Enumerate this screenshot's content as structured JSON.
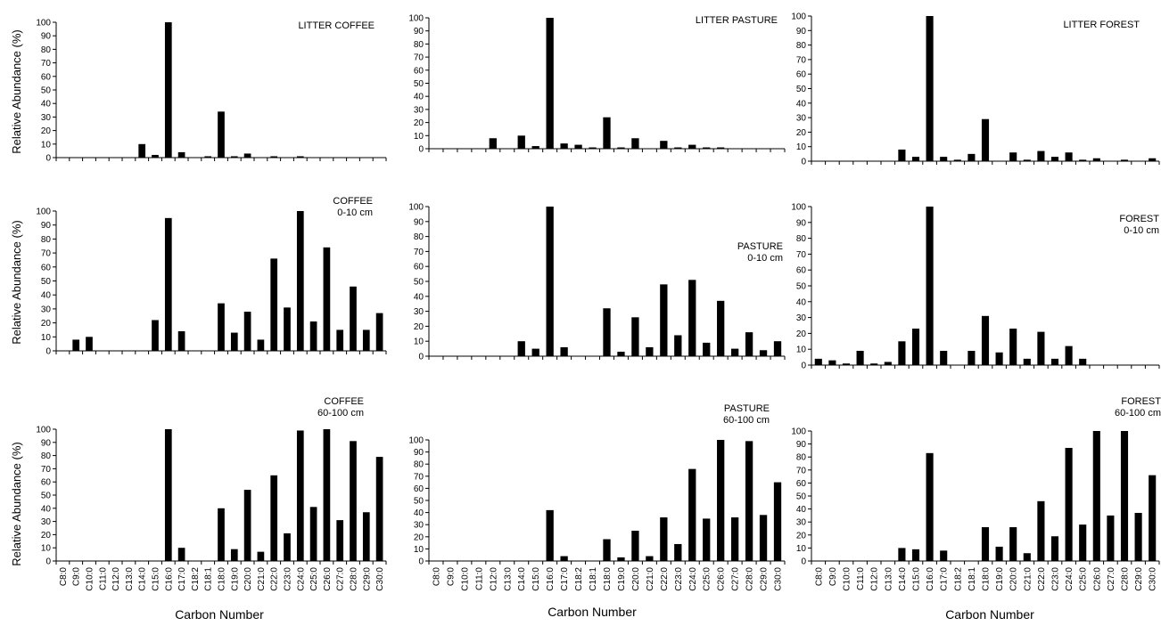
{
  "page": {
    "y_axis_label": "Relative Abundance (%)",
    "x_axis_label": "Carbon Number"
  },
  "chart_data": [
    {
      "type": "bar",
      "title_lines": [
        "LITTER COFFEE"
      ],
      "ylim": [
        0,
        100
      ],
      "yticks": [
        0,
        10,
        20,
        30,
        40,
        50,
        60,
        70,
        80,
        90,
        100
      ],
      "categories": [
        "C8:0",
        "C9:0",
        "C10:0",
        "C11:0",
        "C12:0",
        "C13:0",
        "C14:0",
        "C15:0",
        "C16:0",
        "C17:0",
        "C18:2",
        "C18:1",
        "C18:0",
        "C19:0",
        "C20:0",
        "C21:0",
        "C22:0",
        "C23:0",
        "C24:0",
        "C25:0",
        "C26:0",
        "C27:0",
        "C28:0",
        "C29:0",
        "C30:0"
      ],
      "values": [
        0,
        0,
        0,
        0,
        0,
        0,
        10,
        2,
        100,
        4,
        0,
        1,
        34,
        1,
        3,
        0,
        1,
        0,
        1,
        0,
        0,
        0,
        0,
        0,
        0
      ]
    },
    {
      "type": "bar",
      "title_lines": [
        "LITTER PASTURE"
      ],
      "ylim": [
        0,
        100
      ],
      "yticks": [
        0,
        10,
        20,
        30,
        40,
        50,
        60,
        70,
        80,
        90,
        100
      ],
      "categories": [
        "C8:0",
        "C9:0",
        "C10:0",
        "C11:0",
        "C12:0",
        "C13:0",
        "C14:0",
        "C15:0",
        "C16:0",
        "C17:0",
        "C18:2",
        "C18:1",
        "C18:0",
        "C19:0",
        "C20:0",
        "C21:0",
        "C22:0",
        "C23:0",
        "C24:0",
        "C25:0",
        "C26:0",
        "C27:0",
        "C28:0",
        "C29:0",
        "C30:0"
      ],
      "values": [
        0,
        0,
        0,
        0,
        8,
        0,
        10,
        2,
        100,
        4,
        3,
        1,
        24,
        1,
        8,
        0,
        6,
        1,
        3,
        1,
        1,
        0,
        0,
        0,
        0
      ]
    },
    {
      "type": "bar",
      "title_lines": [
        "LITTER FOREST"
      ],
      "ylim": [
        0,
        100
      ],
      "yticks": [
        0,
        10,
        20,
        30,
        40,
        50,
        60,
        70,
        80,
        90,
        100
      ],
      "categories": [
        "C8:0",
        "C9:0",
        "C10:0",
        "C11:0",
        "C12:0",
        "C13:0",
        "C14:0",
        "C15:0",
        "C16:0",
        "C17:0",
        "C18:2",
        "C18:1",
        "C18:0",
        "C19:0",
        "C20:0",
        "C21:0",
        "C22:0",
        "C23:0",
        "C24:0",
        "C25:0",
        "C26:0",
        "C27:0",
        "C28:0",
        "C29:0",
        "C30:0"
      ],
      "values": [
        0,
        0,
        0,
        0,
        0,
        0,
        8,
        3,
        100,
        3,
        1,
        5,
        29,
        0,
        6,
        1,
        7,
        3,
        6,
        1,
        2,
        0,
        1,
        0,
        2
      ]
    },
    {
      "type": "bar",
      "title_lines": [
        "COFFEE",
        "0-10 cm"
      ],
      "ylim": [
        0,
        100
      ],
      "yticks": [
        0,
        10,
        20,
        30,
        40,
        50,
        60,
        70,
        80,
        90,
        100
      ],
      "categories": [
        "C8:0",
        "C9:0",
        "C10:0",
        "C11:0",
        "C12:0",
        "C13:0",
        "C14:0",
        "C15:0",
        "C16:0",
        "C17:0",
        "C18:2",
        "C18:1",
        "C18:0",
        "C19:0",
        "C20:0",
        "C21:0",
        "C22:0",
        "C23:0",
        "C24:0",
        "C25:0",
        "C26:0",
        "C27:0",
        "C28:0",
        "C29:0",
        "C30:0"
      ],
      "values": [
        0,
        8,
        10,
        0,
        0,
        0,
        0,
        22,
        95,
        14,
        0,
        0,
        34,
        13,
        28,
        8,
        66,
        31,
        100,
        21,
        74,
        15,
        46,
        15,
        27
      ]
    },
    {
      "type": "bar",
      "title_lines": [
        "PASTURE",
        "0-10 cm"
      ],
      "ylim": [
        0,
        100
      ],
      "yticks": [
        0,
        10,
        20,
        30,
        40,
        50,
        60,
        70,
        80,
        90,
        100
      ],
      "categories": [
        "C8:0",
        "C9:0",
        "C10:0",
        "C11:0",
        "C12:0",
        "C13:0",
        "C14:0",
        "C15:0",
        "C16:0",
        "C17:0",
        "C18:2",
        "C18:1",
        "C18:0",
        "C19:0",
        "C20:0",
        "C21:0",
        "C22:0",
        "C23:0",
        "C24:0",
        "C25:0",
        "C26:0",
        "C27:0",
        "C28:0",
        "C29:0",
        "C30:0"
      ],
      "values": [
        0,
        0,
        0,
        0,
        0,
        0,
        10,
        5,
        100,
        6,
        0,
        0,
        32,
        3,
        26,
        6,
        48,
        14,
        51,
        9,
        37,
        5,
        16,
        4,
        10
      ]
    },
    {
      "type": "bar",
      "title_lines": [
        "FOREST",
        "0-10 cm"
      ],
      "ylim": [
        0,
        100
      ],
      "yticks": [
        0,
        10,
        20,
        30,
        40,
        50,
        60,
        70,
        80,
        90,
        100
      ],
      "categories": [
        "C8:0",
        "C9:0",
        "C10:0",
        "C11:0",
        "C12:0",
        "C13:0",
        "C14:0",
        "C15:0",
        "C16:0",
        "C17:0",
        "C18:2",
        "C18:1",
        "C18:0",
        "C19:0",
        "C20:0",
        "C21:0",
        "C22:0",
        "C23:0",
        "C24:0",
        "C25:0",
        "C26:0",
        "C27:0",
        "C28:0",
        "C29:0",
        "C30:0"
      ],
      "values": [
        4,
        3,
        1,
        9,
        1,
        2,
        15,
        23,
        100,
        9,
        0,
        9,
        31,
        8,
        23,
        4,
        21,
        4,
        12,
        4,
        0,
        0,
        0,
        0,
        0
      ]
    },
    {
      "type": "bar",
      "title_lines": [
        "COFFEE",
        "60-100 cm"
      ],
      "ylim": [
        0,
        100
      ],
      "yticks": [
        0,
        10,
        20,
        30,
        40,
        50,
        60,
        70,
        80,
        90,
        100
      ],
      "categories": [
        "C8:0",
        "C9:0",
        "C10:0",
        "C11:0",
        "C12:0",
        "C13:0",
        "C14:0",
        "C15:0",
        "C16:0",
        "C17:0",
        "C18:2",
        "C18:1",
        "C18:0",
        "C19:0",
        "C20:0",
        "C21:0",
        "C22:0",
        "C23:0",
        "C24:0",
        "C25:0",
        "C26:0",
        "C27:0",
        "C28:0",
        "C29:0",
        "C30:0"
      ],
      "values": [
        0,
        0,
        0,
        0,
        0,
        0,
        0,
        0,
        100,
        10,
        0,
        0,
        40,
        9,
        54,
        7,
        65,
        21,
        99,
        41,
        100,
        31,
        91,
        37,
        79
      ]
    },
    {
      "type": "bar",
      "title_lines": [
        "PASTURE",
        "60-100 cm"
      ],
      "ylim": [
        0,
        100
      ],
      "yticks": [
        0,
        10,
        20,
        30,
        40,
        50,
        60,
        70,
        80,
        90,
        100
      ],
      "categories": [
        "C8:0",
        "C9:0",
        "C10:0",
        "C11:0",
        "C12:0",
        "C13:0",
        "C14:0",
        "C15:0",
        "C16:0",
        "C17:0",
        "C18:2",
        "C18:1",
        "C18:0",
        "C19:0",
        "C20:0",
        "C21:0",
        "C22:0",
        "C23:0",
        "C24:0",
        "C25:0",
        "C26:0",
        "C27:0",
        "C28:0",
        "C29:0",
        "C30:0"
      ],
      "values": [
        0,
        0,
        0,
        0,
        0,
        0,
        0,
        0,
        42,
        4,
        0,
        0,
        18,
        3,
        25,
        4,
        36,
        14,
        76,
        35,
        100,
        36,
        99,
        38,
        65
      ]
    },
    {
      "type": "bar",
      "title_lines": [
        "FOREST",
        "60-100 cm"
      ],
      "ylim": [
        0,
        100
      ],
      "yticks": [
        0,
        10,
        20,
        30,
        40,
        50,
        60,
        70,
        80,
        90,
        100
      ],
      "categories": [
        "C8:0",
        "C9:0",
        "C10:0",
        "C11:0",
        "C12:0",
        "C13:0",
        "C14:0",
        "C15:0",
        "C16:0",
        "C17:0",
        "C18:2",
        "C18:1",
        "C18:0",
        "C19:0",
        "C20:0",
        "C21:0",
        "C22:0",
        "C23:0",
        "C24:0",
        "C25:0",
        "C26:0",
        "C27:0",
        "C28:0",
        "C29:0",
        "C30:0"
      ],
      "values": [
        0,
        0,
        0,
        0,
        0,
        0,
        10,
        9,
        83,
        8,
        0,
        0,
        26,
        11,
        26,
        6,
        46,
        19,
        87,
        28,
        100,
        35,
        100,
        37,
        66
      ]
    }
  ]
}
